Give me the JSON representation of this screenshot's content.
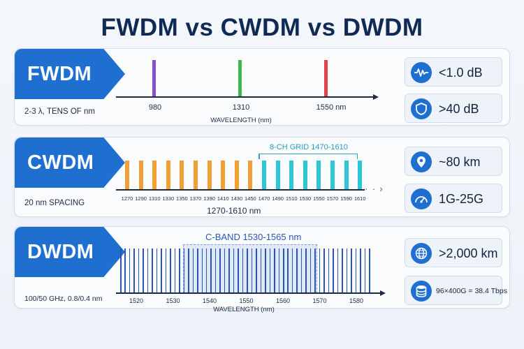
{
  "title": "FWDM vs CWDM vs DWDM",
  "colors": {
    "accent": "#1f6fd1",
    "fwdm_980": "#8a4fcf",
    "fwdm_1310": "#3cb94d",
    "fwdm_1550": "#e5414b",
    "cwdm_orange": "#f2a035",
    "cwdm_cyan": "#2ec7d8",
    "dwdm_line": "#2c55b0"
  },
  "fwdm": {
    "name": "FWDM",
    "subtitle": "2-3 λ, TENS OF nm",
    "wavelengths": [
      "980",
      "1310",
      "1550 nm"
    ],
    "axis_title": "WAVELENGTH (nm)",
    "specs": [
      {
        "icon": "waveform-icon",
        "text": "<1.0 dB"
      },
      {
        "icon": "shield-icon",
        "text": ">40 dB"
      }
    ]
  },
  "cwdm": {
    "name": "CWDM",
    "subtitle": "20 nm SPACING",
    "grid_label": "8-CH GRID 1470-1610",
    "ticks": [
      "1270",
      "1290",
      "1310",
      "1330",
      "1350",
      "1370",
      "1390",
      "1410",
      "1430",
      "1450",
      "1470",
      "1490",
      "1510",
      "1530",
      "1550",
      "1570",
      "1590",
      "1610"
    ],
    "range_label": "1270-1610 nm",
    "specs": [
      {
        "icon": "location-pin-icon",
        "text": "~80 km"
      },
      {
        "icon": "speedometer-icon",
        "text": "1G-25G"
      }
    ]
  },
  "dwdm": {
    "name": "DWDM",
    "subtitle": "100/50 GHz, 0.8/0.4 nm",
    "band_label": "C-BAND 1530-1565 nm",
    "ticks": [
      "1520",
      "1530",
      "1540",
      "1550",
      "1560",
      "1570",
      "1580"
    ],
    "axis_title": "WAVELENGTH (nm)",
    "channel_lines": 56,
    "specs": [
      {
        "icon": "globe-icon",
        "text": ">2,000 km"
      },
      {
        "icon": "database-icon",
        "text": "96×400G = 38.4 Tbps"
      }
    ]
  }
}
